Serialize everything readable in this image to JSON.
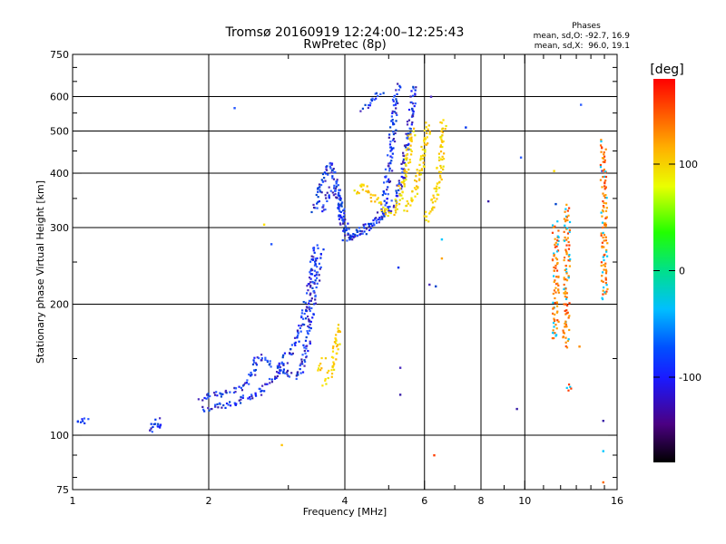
{
  "chart_data": {
    "type": "scatter",
    "title": "Tromsø 20160919 12:24:00–12:25:43",
    "subtitle": "RwPretec (8p)",
    "xlabel": "Frequency [MHz]",
    "ylabel": "Stationary phase Virtual Height [km]",
    "x_scale": "log",
    "y_scale": "log",
    "xlim": [
      1,
      16
    ],
    "ylim": [
      75,
      750
    ],
    "x_ticks": [
      1,
      2,
      4,
      6,
      8,
      10,
      16
    ],
    "y_ticks": [
      75,
      100,
      200,
      300,
      400,
      500,
      600,
      750
    ],
    "grid": true,
    "stats": {
      "heading": "Phases",
      "line_o": "mean, sd,O: -92.7, 16.9",
      "line_x": "mean, sd,X:  96.0, 19.1"
    },
    "colorbar": {
      "label": "[deg]",
      "range": [
        -180,
        180
      ],
      "ticks": [
        100,
        0,
        -100
      ],
      "tick_labels": [
        "100",
        "0",
        "-100"
      ]
    },
    "series": [
      {
        "mode": "O",
        "phase_mean": -92.7,
        "phase_sd": 16.9,
        "traces": [
          [
            [
              1.03,
              106
            ],
            [
              1.06,
              109
            ],
            [
              1.08,
              107
            ]
          ],
          [
            [
              1.48,
              102
            ],
            [
              1.5,
              104
            ],
            [
              1.52,
              106
            ],
            [
              1.54,
              104
            ],
            [
              1.55,
              110
            ]
          ],
          [
            [
              1.92,
              122
            ],
            [
              2.0,
              123
            ],
            [
              2.1,
              124
            ],
            [
              2.2,
              125
            ],
            [
              2.32,
              128
            ],
            [
              2.45,
              133
            ],
            [
              2.5,
              140
            ],
            [
              2.55,
              148
            ],
            [
              2.6,
              152
            ],
            [
              2.7,
              148
            ],
            [
              2.8,
              145
            ],
            [
              2.9,
              143
            ],
            [
              2.95,
              140
            ],
            [
              3.0,
              138
            ],
            [
              3.1,
              136
            ],
            [
              3.2,
              140
            ],
            [
              3.25,
              150
            ],
            [
              3.3,
              165
            ],
            [
              3.35,
              185
            ],
            [
              3.4,
              205
            ],
            [
              3.45,
              225
            ],
            [
              3.5,
              250
            ],
            [
              3.55,
              268
            ]
          ],
          [
            [
              1.95,
              115
            ],
            [
              2.05,
              116
            ],
            [
              2.15,
              117
            ],
            [
              2.25,
              118
            ],
            [
              2.35,
              120
            ],
            [
              2.45,
              122
            ],
            [
              2.55,
              124
            ],
            [
              2.65,
              128
            ],
            [
              2.75,
              133
            ],
            [
              2.85,
              140
            ],
            [
              2.95,
              150
            ],
            [
              3.05,
              158
            ],
            [
              3.15,
              168
            ],
            [
              3.22,
              185
            ],
            [
              3.3,
              205
            ],
            [
              3.36,
              230
            ],
            [
              3.42,
              255
            ],
            [
              3.46,
              275
            ]
          ],
          [
            [
              3.42,
              330
            ],
            [
              3.48,
              348
            ],
            [
              3.54,
              370
            ],
            [
              3.6,
              395
            ],
            [
              3.66,
              415
            ],
            [
              3.72,
              425
            ],
            [
              3.78,
              405
            ],
            [
              3.84,
              372
            ],
            [
              3.9,
              335
            ],
            [
              3.96,
              300
            ],
            [
              4.02,
              285
            ],
            [
              4.12,
              282
            ],
            [
              4.22,
              287
            ],
            [
              4.35,
              292
            ],
            [
              4.5,
              300
            ],
            [
              4.7,
              310
            ],
            [
              4.85,
              330
            ],
            [
              4.95,
              370
            ],
            [
              5.02,
              420
            ],
            [
              5.08,
              480
            ],
            [
              5.14,
              545
            ],
            [
              5.2,
              600
            ],
            [
              5.24,
              640
            ]
          ],
          [
            [
              3.55,
              330
            ],
            [
              3.62,
              345
            ],
            [
              3.7,
              362
            ],
            [
              3.78,
              372
            ],
            [
              3.86,
              355
            ],
            [
              3.94,
              322
            ],
            [
              4.02,
              296
            ],
            [
              4.12,
              288
            ],
            [
              4.25,
              292
            ],
            [
              4.4,
              300
            ],
            [
              4.6,
              308
            ],
            [
              4.8,
              316
            ],
            [
              5.0,
              330
            ],
            [
              5.2,
              350
            ],
            [
              5.35,
              390
            ],
            [
              5.45,
              440
            ],
            [
              5.55,
              500
            ],
            [
              5.62,
              560
            ],
            [
              5.7,
              620
            ],
            [
              5.76,
              640
            ]
          ],
          [
            [
              4.4,
              565
            ],
            [
              4.55,
              575
            ],
            [
              4.7,
              600
            ],
            [
              4.85,
              610
            ]
          ],
          [
            [
              2.28,
              565
            ]
          ],
          [
            [
              2.75,
              275
            ]
          ],
          [
            [
              5.25,
              243
            ]
          ],
          [
            [
              6.35,
              220
            ]
          ],
          [
            [
              6.15,
              222
            ]
          ],
          [
            [
              5.3,
              143
            ]
          ],
          [
            [
              5.3,
              124
            ]
          ],
          [
            [
              7.4,
              510
            ]
          ],
          [
            [
              6.2,
              600
            ]
          ],
          [
            [
              8.3,
              345
            ]
          ],
          [
            [
              9.6,
              115
            ]
          ],
          [
            [
              9.8,
              435
            ]
          ],
          [
            [
              11.7,
              340
            ]
          ],
          [
            [
              13.3,
              575
            ]
          ],
          [
            [
              14.8,
              405
            ]
          ],
          [
            [
              14.9,
              108
            ]
          ]
        ]
      },
      {
        "mode": "X",
        "phase_mean": 96.0,
        "phase_sd": 19.1,
        "traces": [
          [
            [
              4.25,
              360
            ],
            [
              4.35,
              375
            ],
            [
              4.5,
              368
            ],
            [
              4.65,
              350
            ],
            [
              4.8,
              335
            ],
            [
              4.95,
              325
            ],
            [
              5.1,
              322
            ],
            [
              5.2,
              332
            ],
            [
              5.28,
              348
            ],
            [
              5.38,
              380
            ],
            [
              5.48,
              420
            ],
            [
              5.58,
              470
            ],
            [
              5.65,
              510
            ]
          ],
          [
            [
              5.45,
              330
            ],
            [
              5.55,
              342
            ],
            [
              5.65,
              356
            ],
            [
              5.75,
              375
            ],
            [
              5.85,
              400
            ],
            [
              5.95,
              430
            ],
            [
              6.02,
              460
            ],
            [
              6.08,
              495
            ],
            [
              6.15,
              520
            ]
          ],
          [
            [
              6.05,
              315
            ],
            [
              6.15,
              325
            ],
            [
              6.25,
              340
            ],
            [
              6.35,
              360
            ],
            [
              6.45,
              390
            ],
            [
              6.52,
              430
            ],
            [
              6.58,
              480
            ],
            [
              6.62,
              530
            ]
          ],
          [
            [
              3.62,
              132
            ],
            [
              3.68,
              136
            ],
            [
              3.73,
              140
            ],
            [
              3.78,
              148
            ],
            [
              3.83,
              160
            ],
            [
              3.88,
              172
            ],
            [
              3.93,
              180
            ]
          ],
          [
            [
              3.5,
              142
            ],
            [
              3.55,
              146
            ],
            [
              3.6,
              150
            ]
          ],
          [
            [
              2.65,
              305
            ]
          ],
          [
            [
              2.9,
              95
            ]
          ],
          [
            [
              11.6,
              405
            ]
          ]
        ]
      },
      {
        "mode": "scattered",
        "traces": [
          [
            [
              11.7,
              305
            ],
            [
              11.7,
              275
            ],
            [
              11.7,
              255
            ],
            [
              11.7,
              245
            ],
            [
              11.7,
              232
            ],
            [
              11.7,
              205
            ],
            [
              11.7,
              175
            ],
            [
              11.7,
              165
            ]
          ],
          [
            [
              12.4,
              335
            ],
            [
              12.4,
              195
            ],
            [
              12.3,
              160
            ]
          ],
          [
            [
              12.35,
              130
            ],
            [
              12.5,
              125
            ]
          ],
          [
            [
              14.8,
              470
            ],
            [
              14.9,
              462
            ],
            [
              15.0,
              265
            ],
            [
              15.0,
              205
            ]
          ],
          [
            [
              14.9,
              92
            ]
          ],
          [
            [
              14.9,
              78
            ]
          ],
          [
            [
              13.2,
              160
            ]
          ],
          [
            [
              6.3,
              90
            ]
          ],
          [
            [
              6.55,
              255
            ]
          ],
          [
            [
              6.55,
              282
            ]
          ]
        ]
      }
    ]
  }
}
